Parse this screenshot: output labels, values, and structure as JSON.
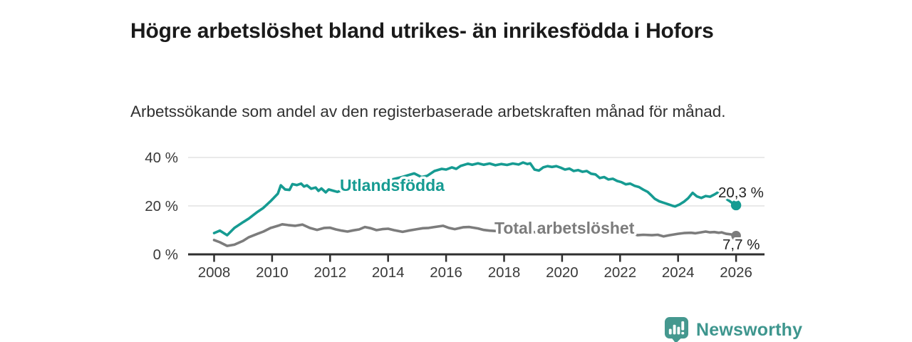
{
  "chart_data": {
    "type": "line",
    "title": "Högre arbetslöshet bland utrikes- än inrikesfödda i Hofors",
    "subtitle": "Arbetssökande som andel av den registerbaserade arbetskraften månad för månad.",
    "xlabel": "",
    "ylabel": "",
    "x_unit": "decimal_year",
    "xlim": [
      2007.1,
      2027
    ],
    "ylim": [
      0,
      40
    ],
    "grid": "horizontal",
    "legend_position": "inline-labels",
    "yticks": [
      {
        "value": 0,
        "label": "0 %"
      },
      {
        "value": 20,
        "label": "20 %"
      },
      {
        "value": 40,
        "label": "40 %"
      }
    ],
    "xticks": [
      {
        "value": 2008,
        "label": "2008"
      },
      {
        "value": 2010,
        "label": "2010"
      },
      {
        "value": 2012,
        "label": "2012"
      },
      {
        "value": 2014,
        "label": "2014"
      },
      {
        "value": 2016,
        "label": "2016"
      },
      {
        "value": 2018,
        "label": "2018"
      },
      {
        "value": 2020,
        "label": "2020"
      },
      {
        "value": 2022,
        "label": "2022"
      },
      {
        "value": 2024,
        "label": "2024"
      },
      {
        "value": 2026,
        "label": "2026"
      }
    ],
    "series": [
      {
        "name": "Utlandsfödda",
        "color": "#169B92",
        "end_value": 20.3,
        "end_label": "20,3 %",
        "points": [
          [
            2008.0,
            8.8
          ],
          [
            2008.2,
            9.8
          ],
          [
            2008.45,
            7.9
          ],
          [
            2008.7,
            10.9
          ],
          [
            2009.0,
            13.3
          ],
          [
            2009.2,
            14.8
          ],
          [
            2009.35,
            16.2
          ],
          [
            2009.5,
            17.6
          ],
          [
            2009.7,
            19.2
          ],
          [
            2009.95,
            22.0
          ],
          [
            2010.2,
            25.1
          ],
          [
            2010.3,
            28.5
          ],
          [
            2010.45,
            26.8
          ],
          [
            2010.6,
            26.6
          ],
          [
            2010.7,
            29.0
          ],
          [
            2010.85,
            28.6
          ],
          [
            2011.0,
            29.2
          ],
          [
            2011.1,
            28.0
          ],
          [
            2011.2,
            28.5
          ],
          [
            2011.35,
            27.1
          ],
          [
            2011.5,
            27.6
          ],
          [
            2011.6,
            26.2
          ],
          [
            2011.7,
            27.2
          ],
          [
            2011.85,
            25.6
          ],
          [
            2011.95,
            26.8
          ],
          [
            2012.1,
            26.3
          ],
          [
            2012.25,
            25.8
          ],
          [
            2012.4,
            26.4
          ],
          [
            2012.7,
            27.1
          ],
          [
            2013.0,
            27.9
          ],
          [
            2013.3,
            28.7
          ],
          [
            2013.6,
            29.5
          ],
          [
            2013.9,
            30.3
          ],
          [
            2014.2,
            31.1
          ],
          [
            2014.5,
            32.0
          ],
          [
            2014.9,
            33.4
          ],
          [
            2015.15,
            31.9
          ],
          [
            2015.35,
            32.4
          ],
          [
            2015.6,
            34.4
          ],
          [
            2015.85,
            35.3
          ],
          [
            2016.0,
            35.0
          ],
          [
            2016.2,
            35.9
          ],
          [
            2016.35,
            35.3
          ],
          [
            2016.5,
            36.5
          ],
          [
            2016.75,
            37.4
          ],
          [
            2016.9,
            37.0
          ],
          [
            2017.1,
            37.6
          ],
          [
            2017.3,
            37.0
          ],
          [
            2017.5,
            37.5
          ],
          [
            2017.7,
            36.8
          ],
          [
            2017.9,
            37.3
          ],
          [
            2018.1,
            36.9
          ],
          [
            2018.3,
            37.5
          ],
          [
            2018.5,
            37.1
          ],
          [
            2018.65,
            37.9
          ],
          [
            2018.8,
            37.3
          ],
          [
            2018.9,
            37.6
          ],
          [
            2019.05,
            35.0
          ],
          [
            2019.2,
            34.6
          ],
          [
            2019.35,
            35.9
          ],
          [
            2019.5,
            36.4
          ],
          [
            2019.65,
            36.1
          ],
          [
            2019.8,
            36.4
          ],
          [
            2019.95,
            35.8
          ],
          [
            2020.1,
            35.0
          ],
          [
            2020.25,
            35.4
          ],
          [
            2020.4,
            34.4
          ],
          [
            2020.55,
            34.8
          ],
          [
            2020.7,
            34.1
          ],
          [
            2020.85,
            34.4
          ],
          [
            2021.0,
            33.3
          ],
          [
            2021.15,
            33.0
          ],
          [
            2021.3,
            31.5
          ],
          [
            2021.45,
            31.9
          ],
          [
            2021.6,
            30.9
          ],
          [
            2021.75,
            31.2
          ],
          [
            2021.9,
            30.3
          ],
          [
            2022.05,
            29.8
          ],
          [
            2022.2,
            28.9
          ],
          [
            2022.35,
            29.2
          ],
          [
            2022.5,
            28.3
          ],
          [
            2022.65,
            27.8
          ],
          [
            2022.8,
            26.7
          ],
          [
            2022.95,
            25.8
          ],
          [
            2023.1,
            24.1
          ],
          [
            2023.2,
            22.9
          ],
          [
            2023.35,
            21.9
          ],
          [
            2023.5,
            21.3
          ],
          [
            2023.65,
            20.7
          ],
          [
            2023.8,
            20.1
          ],
          [
            2023.9,
            19.8
          ],
          [
            2024.05,
            20.6
          ],
          [
            2024.2,
            21.7
          ],
          [
            2024.35,
            23.2
          ],
          [
            2024.5,
            25.4
          ],
          [
            2024.65,
            23.9
          ],
          [
            2024.8,
            23.3
          ],
          [
            2024.95,
            24.1
          ],
          [
            2025.1,
            23.8
          ],
          [
            2025.25,
            24.7
          ],
          [
            2025.4,
            25.8
          ],
          [
            2025.5,
            25.1
          ],
          [
            2025.6,
            24.1
          ],
          [
            2025.7,
            22.6
          ],
          [
            2025.8,
            21.8
          ],
          [
            2025.9,
            20.9
          ],
          [
            2026.0,
            20.3
          ]
        ]
      },
      {
        "name": "Total arbetslöshet",
        "color": "#7C7C7C",
        "end_value": 7.7,
        "end_label": "7,7 %",
        "points": [
          [
            2008.0,
            5.9
          ],
          [
            2008.2,
            5.0
          ],
          [
            2008.45,
            3.5
          ],
          [
            2008.7,
            4.0
          ],
          [
            2009.0,
            5.6
          ],
          [
            2009.2,
            7.1
          ],
          [
            2009.5,
            8.5
          ],
          [
            2009.7,
            9.4
          ],
          [
            2009.95,
            10.9
          ],
          [
            2010.2,
            11.8
          ],
          [
            2010.35,
            12.4
          ],
          [
            2010.55,
            12.1
          ],
          [
            2010.8,
            11.8
          ],
          [
            2011.05,
            12.3
          ],
          [
            2011.3,
            10.9
          ],
          [
            2011.55,
            10.1
          ],
          [
            2011.8,
            10.9
          ],
          [
            2012.0,
            11.0
          ],
          [
            2012.2,
            10.3
          ],
          [
            2012.4,
            9.8
          ],
          [
            2012.6,
            9.4
          ],
          [
            2012.8,
            9.9
          ],
          [
            2013.0,
            10.3
          ],
          [
            2013.2,
            11.3
          ],
          [
            2013.4,
            10.8
          ],
          [
            2013.6,
            10.0
          ],
          [
            2013.8,
            10.4
          ],
          [
            2014.0,
            10.6
          ],
          [
            2014.2,
            10.0
          ],
          [
            2014.5,
            9.3
          ],
          [
            2014.7,
            9.8
          ],
          [
            2015.0,
            10.4
          ],
          [
            2015.2,
            10.8
          ],
          [
            2015.4,
            10.9
          ],
          [
            2015.6,
            11.3
          ],
          [
            2015.9,
            11.8
          ],
          [
            2016.1,
            10.9
          ],
          [
            2016.3,
            10.4
          ],
          [
            2016.6,
            11.2
          ],
          [
            2016.8,
            11.3
          ],
          [
            2017.1,
            10.7
          ],
          [
            2017.3,
            10.1
          ],
          [
            2017.5,
            9.8
          ],
          [
            2017.8,
            9.6
          ],
          [
            2018.2,
            9.4
          ],
          [
            2018.6,
            9.3
          ],
          [
            2019.0,
            9.2
          ],
          [
            2019.4,
            9.0
          ],
          [
            2019.8,
            8.9
          ],
          [
            2020.2,
            9.1
          ],
          [
            2020.6,
            8.9
          ],
          [
            2021.0,
            8.8
          ],
          [
            2021.4,
            8.7
          ],
          [
            2021.8,
            8.6
          ],
          [
            2022.2,
            8.5
          ],
          [
            2022.45,
            8.5
          ],
          [
            2022.6,
            7.9
          ],
          [
            2022.8,
            8.1
          ],
          [
            2023.1,
            7.9
          ],
          [
            2023.3,
            8.1
          ],
          [
            2023.5,
            7.4
          ],
          [
            2023.7,
            7.9
          ],
          [
            2024.0,
            8.5
          ],
          [
            2024.2,
            8.8
          ],
          [
            2024.45,
            8.9
          ],
          [
            2024.6,
            8.7
          ],
          [
            2024.95,
            9.4
          ],
          [
            2025.1,
            9.1
          ],
          [
            2025.25,
            9.2
          ],
          [
            2025.4,
            8.9
          ],
          [
            2025.5,
            9.1
          ],
          [
            2025.65,
            8.5
          ],
          [
            2025.8,
            8.3
          ],
          [
            2025.9,
            8.0
          ],
          [
            2026.0,
            7.7
          ]
        ]
      }
    ],
    "colors": {
      "accent_teal": "#169B92",
      "line_gray": "#7C7C7C",
      "axis": "#2F2F2F",
      "gridline": "#DCDCDC",
      "tick_text": "#3A3A3A",
      "value_label_text": "#222222"
    }
  },
  "footer": {
    "brand": "Newsworthy",
    "brand_color": "#3E968E",
    "logo_color": "#45988F"
  }
}
